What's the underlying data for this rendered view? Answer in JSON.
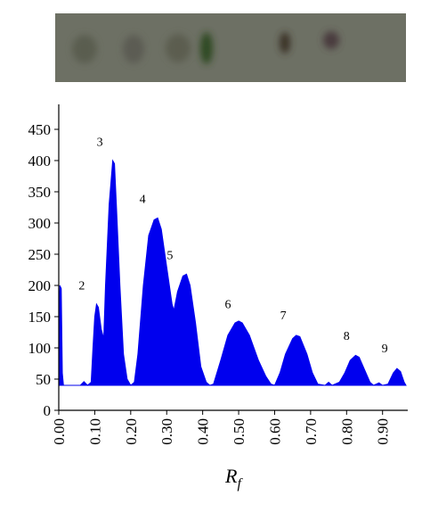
{
  "chart_data": {
    "type": "area",
    "x_label": [
      "R",
      "f"
    ],
    "x": [
      0.0,
      0.003,
      0.007,
      0.01,
      0.013,
      0.03,
      0.06,
      0.07,
      0.08,
      0.09,
      0.095,
      0.1,
      0.105,
      0.11,
      0.118,
      0.125,
      0.13,
      0.14,
      0.15,
      0.155,
      0.16,
      0.17,
      0.18,
      0.19,
      0.2,
      0.21,
      0.22,
      0.235,
      0.25,
      0.265,
      0.275,
      0.285,
      0.3,
      0.315,
      0.32,
      0.33,
      0.345,
      0.355,
      0.365,
      0.38,
      0.395,
      0.41,
      0.42,
      0.43,
      0.45,
      0.47,
      0.49,
      0.5,
      0.51,
      0.53,
      0.555,
      0.575,
      0.59,
      0.6,
      0.615,
      0.63,
      0.65,
      0.66,
      0.67,
      0.69,
      0.705,
      0.72,
      0.74,
      0.75,
      0.76,
      0.78,
      0.795,
      0.81,
      0.825,
      0.835,
      0.85,
      0.865,
      0.875,
      0.89,
      0.9,
      0.915,
      0.93,
      0.94,
      0.95,
      0.96,
      0.965
    ],
    "values": [
      135,
      200,
      195,
      60,
      40,
      40,
      40,
      46,
      40,
      45,
      100,
      150,
      170,
      165,
      130,
      115,
      200,
      330,
      400,
      395,
      330,
      200,
      90,
      50,
      40,
      45,
      90,
      200,
      280,
      305,
      308,
      290,
      230,
      170,
      160,
      190,
      215,
      218,
      200,
      140,
      70,
      45,
      40,
      42,
      80,
      120,
      140,
      143,
      140,
      120,
      80,
      55,
      42,
      40,
      60,
      90,
      115,
      120,
      118,
      90,
      60,
      42,
      40,
      45,
      40,
      45,
      60,
      80,
      88,
      85,
      65,
      45,
      40,
      44,
      40,
      42,
      60,
      67,
      62,
      45,
      40
    ],
    "color": "#0000ee",
    "xlim": [
      0,
      0.97
    ],
    "ylim": [
      0,
      490
    ],
    "xticks": [
      {
        "value": 0,
        "label": "0.00"
      },
      {
        "value": 0.1,
        "label": "0.10"
      },
      {
        "value": 0.2,
        "label": "0.20"
      },
      {
        "value": 0.3,
        "label": "0.30"
      },
      {
        "value": 0.4,
        "label": "0.40"
      },
      {
        "value": 0.5,
        "label": "0.50"
      },
      {
        "value": 0.6,
        "label": "0.60"
      },
      {
        "value": 0.7,
        "label": "0.70"
      },
      {
        "value": 0.8,
        "label": "0.80"
      },
      {
        "value": 0.9,
        "label": "0.90"
      }
    ],
    "yticks": [
      0,
      50,
      100,
      150,
      200,
      250,
      300,
      350,
      400,
      450
    ],
    "annotations": [
      {
        "text": "2",
        "x": 0.064,
        "y": 201
      },
      {
        "text": "3",
        "x": 0.114,
        "y": 431
      },
      {
        "text": "4",
        "x": 0.233,
        "y": 339
      },
      {
        "text": "5",
        "x": 0.309,
        "y": 249
      },
      {
        "text": "6",
        "x": 0.47,
        "y": 171
      },
      {
        "text": "7",
        "x": 0.624,
        "y": 153
      },
      {
        "text": "8",
        "x": 0.8,
        "y": 120
      },
      {
        "text": "9",
        "x": 0.906,
        "y": 100
      }
    ]
  }
}
